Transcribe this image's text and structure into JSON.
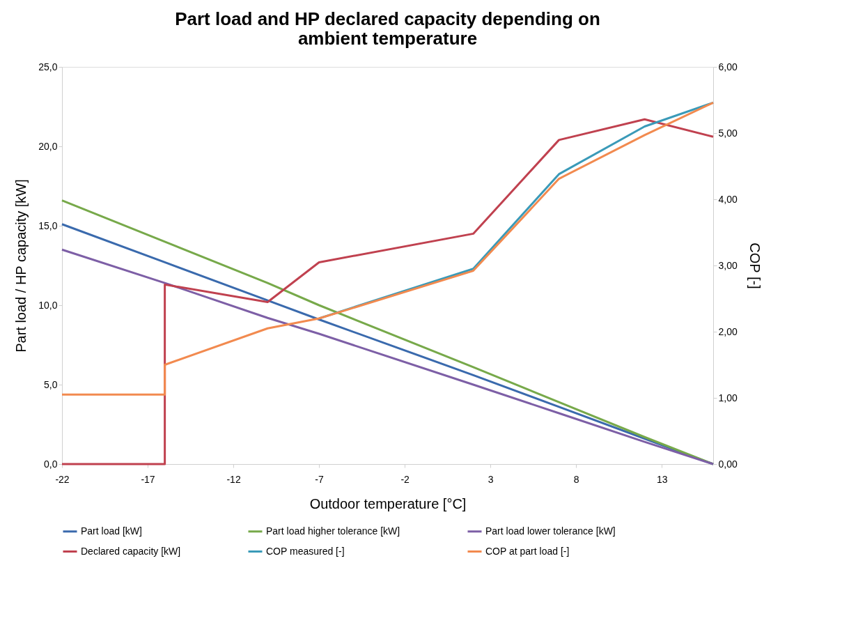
{
  "chart_data": {
    "type": "line",
    "title": "Part load and HP declared capacity depending on ambient temperature",
    "xlabel": "Outdoor temperature [°C]",
    "ylabel": "Part load / HP capacity [kW]",
    "y2label": "COP [-]",
    "x": [
      -22,
      -16,
      -10,
      -7,
      2,
      7,
      12,
      16
    ],
    "series": [
      {
        "name": "Part load [kW]",
        "color": "#3a6aad",
        "values": [
          15.1,
          12.7,
          10.3,
          9.1,
          5.6,
          3.6,
          1.6,
          0
        ]
      },
      {
        "name": "Part load higher tolerance [kW]",
        "color": "#77a94a",
        "values": [
          16.6,
          14.0,
          11.4,
          10.0,
          6.1,
          3.9,
          1.7,
          0
        ]
      },
      {
        "name": "Part load lower tolerance [kW]",
        "color": "#7d5fa6",
        "values": [
          13.5,
          11.4,
          9.2,
          8.2,
          5.0,
          3.2,
          1.4,
          0
        ]
      },
      {
        "name": "Declared capacity [kW]",
        "color": "#c0414f",
        "x": [
          -22,
          -16,
          -16,
          -10,
          -7,
          2,
          7,
          12,
          16
        ],
        "values": [
          0,
          0,
          11.3,
          10.2,
          12.7,
          14.5,
          20.4,
          21.7,
          20.6
        ]
      },
      {
        "name": "COP measured [-]",
        "color": "#3a9ab8",
        "axis": "y2",
        "x": [
          -7,
          2,
          7,
          12,
          16
        ],
        "values": [
          2.2,
          2.95,
          4.38,
          5.1,
          5.46
        ]
      },
      {
        "name": "COP at part load [-]",
        "color": "#f28a4f",
        "axis": "y2",
        "x": [
          -22,
          -16,
          -16,
          -10,
          -7,
          2,
          7,
          12,
          16
        ],
        "values": [
          1.05,
          1.05,
          1.5,
          2.05,
          2.2,
          2.92,
          4.31,
          4.97,
          5.46
        ]
      }
    ],
    "xlim": [
      -22,
      16
    ],
    "xticks": [
      -22,
      -17,
      -12,
      -7,
      -2,
      3,
      8,
      13
    ],
    "ylim": [
      0,
      25
    ],
    "yticks": [
      {
        "value": 0,
        "label": "0,0"
      },
      {
        "value": 5,
        "label": "5,0"
      },
      {
        "value": 10,
        "label": "10,0"
      },
      {
        "value": 15,
        "label": "15,0"
      },
      {
        "value": 20,
        "label": "20,0"
      },
      {
        "value": 25,
        "label": "25,0"
      }
    ],
    "y2lim": [
      0,
      6
    ],
    "y2ticks": [
      {
        "value": 0,
        "label": "0,00"
      },
      {
        "value": 1,
        "label": "1,00"
      },
      {
        "value": 2,
        "label": "2,00"
      },
      {
        "value": 3,
        "label": "3,00"
      },
      {
        "value": 4,
        "label": "4,00"
      },
      {
        "value": 5,
        "label": "5,00"
      },
      {
        "value": 6,
        "label": "6,00"
      }
    ],
    "legend": "bottom",
    "marker": "none",
    "line_style": "solid",
    "grid": false
  }
}
